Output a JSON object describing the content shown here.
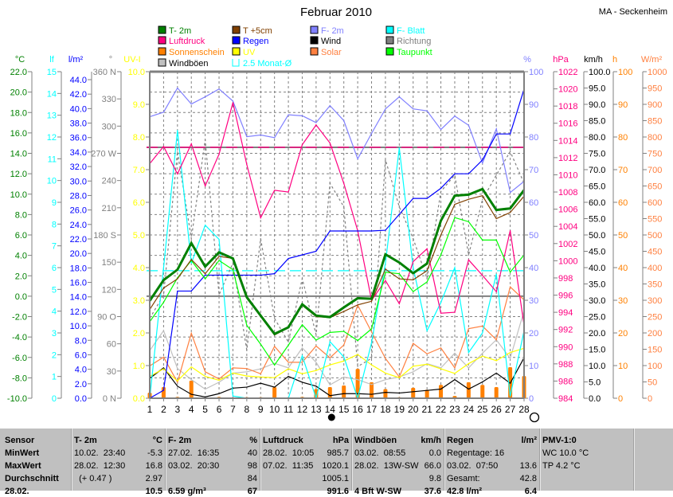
{
  "title": "Februar 2010",
  "station": "MA - Seckenheim",
  "legend": [
    {
      "label": "T- 2m",
      "color": "#008000"
    },
    {
      "label": "T +5cm",
      "color": "#804000"
    },
    {
      "label": "F- 2m",
      "color": "#8080ff"
    },
    {
      "label": "F- Blatt",
      "color": "#00ffff"
    },
    {
      "label": "Luftdruck",
      "color": "#ff0080"
    },
    {
      "label": "Regen",
      "color": "#0000ff"
    },
    {
      "label": "Wind",
      "color": "#000000"
    },
    {
      "label": "Richtung",
      "color": "#808080"
    },
    {
      "label": "Sonnenschein",
      "color": "#ff8000"
    },
    {
      "label": "UV",
      "color": "#ffff00"
    },
    {
      "label": "Solar",
      "color": "#ff8040"
    },
    {
      "label": "Taupunkt",
      "color": "#00ff00"
    },
    {
      "label": "Windböen",
      "color": "#c0c0c0"
    },
    {
      "label": "2.5 Monat-Ø",
      "color": "#00ffff"
    }
  ],
  "chart_data": {
    "type": "line",
    "title": "Februar 2010",
    "x": [
      1,
      2,
      3,
      4,
      5,
      6,
      7,
      8,
      9,
      10,
      11,
      12,
      13,
      14,
      15,
      16,
      17,
      18,
      19,
      20,
      21,
      22,
      23,
      24,
      25,
      26,
      27,
      28
    ],
    "grid": true,
    "axes": {
      "C": {
        "unit": "°C",
        "color": "#008000",
        "min": -10,
        "max": 22,
        "ticks": [
          22,
          20,
          18,
          16,
          14,
          12,
          10,
          8,
          6,
          4,
          2,
          0,
          -2,
          -4,
          -6,
          -8,
          -10
        ],
        "labels": [
          "22.0",
          "20.0",
          "18.0",
          "16.0",
          "14.0",
          "12.0",
          "10.0",
          "8.0",
          "6.0",
          "4.0",
          "2.0",
          "0.0",
          "-2.0",
          "-4.0",
          "-6.0",
          "-8.0",
          "-10.0"
        ]
      },
      "lf": {
        "unit": "lf",
        "color": "#00ffff",
        "min": 0,
        "max": 15,
        "ticks": [
          15,
          14,
          13,
          12,
          11,
          10,
          9,
          8,
          7,
          6,
          5,
          4,
          3,
          2,
          1,
          0
        ],
        "labels": [
          "15",
          "14",
          "13",
          "12",
          "11",
          "10",
          "9",
          "8",
          "7",
          "6",
          "5",
          "4",
          "3",
          "2",
          "1",
          "0"
        ]
      },
      "mm": {
        "unit": "l/m²",
        "color": "#0000ff",
        "min": 0,
        "max": 45.1,
        "ticks": [
          44,
          42,
          40,
          38,
          36,
          34,
          32,
          30,
          28,
          26,
          24,
          22,
          20,
          18,
          16,
          14,
          12,
          10,
          8,
          6,
          4,
          2,
          0
        ],
        "labels": [
          "44.0",
          "42.0",
          "40.0",
          "38.0",
          "36.0",
          "34.0",
          "32.0",
          "30.0",
          "28.0",
          "26.0",
          "24.0",
          "22.0",
          "20.0",
          "18.0",
          "16.0",
          "14.0",
          "12.0",
          "10.0",
          "8.0",
          "6.0",
          "4.0",
          "2.0",
          "0.0"
        ]
      },
      "deg": {
        "unit": "°",
        "color": "#808080",
        "min": 0,
        "max": 360,
        "ticks": [
          360,
          330,
          300,
          270,
          240,
          210,
          180,
          150,
          120,
          90,
          60,
          30,
          0
        ],
        "labels": [
          "360 N",
          "330",
          "300",
          "270 W",
          "240",
          "210",
          "180 S",
          "150",
          "120",
          "90  O",
          "60",
          "30",
          "0    N"
        ]
      },
      "uv": {
        "unit": "UV-I",
        "color": "#ffff00",
        "min": 0,
        "max": 10,
        "ticks": [
          10,
          9,
          8,
          7,
          6,
          5,
          4,
          3,
          2,
          1,
          0
        ],
        "labels": [
          "10.0",
          "9.0",
          "8.0",
          "7.0",
          "6.0",
          "5.0",
          "4.0",
          "3.0",
          "2.0",
          "1.0",
          "0.0"
        ]
      },
      "pct": {
        "unit": "%",
        "color": "#8080ff",
        "min": 0,
        "max": 100,
        "ticks": [
          100,
          90,
          80,
          70,
          60,
          50,
          40,
          30,
          20,
          10,
          0
        ],
        "labels": [
          "100",
          "90",
          "80",
          "70",
          "60",
          "50",
          "40",
          "30",
          "20",
          "10",
          "0"
        ]
      },
      "hpa": {
        "unit": "hPa",
        "color": "#ff0080",
        "min": 984,
        "max": 1022,
        "ticks": [
          1022,
          1020,
          1018,
          1016,
          1014,
          1012,
          1010,
          1008,
          1006,
          1004,
          1002,
          1000,
          998,
          996,
          994,
          992,
          990,
          988,
          986,
          984
        ],
        "labels": [
          "1022",
          "1020",
          "1018",
          "1016",
          "1014",
          "1012",
          "1010",
          "1008",
          "1006",
          "1004",
          "1002",
          "1000",
          "998",
          "996",
          "994",
          "992",
          "990",
          "988",
          "986",
          "984"
        ]
      },
      "kmh": {
        "unit": "km/h",
        "color": "#000000",
        "min": 0,
        "max": 100,
        "ticks": [
          100,
          95,
          90,
          85,
          80,
          75,
          70,
          65,
          60,
          55,
          50,
          45,
          40,
          35,
          30,
          25,
          20,
          15,
          10,
          5,
          0
        ],
        "labels": [
          "100.0",
          "95.0",
          "90.0",
          "85.0",
          "80.0",
          "75.0",
          "70.0",
          "65.0",
          "60.0",
          "55.0",
          "50.0",
          "45.0",
          "40.0",
          "35.0",
          "30.0",
          "25.0",
          "20.0",
          "15.0",
          "10.0",
          "5.0",
          "0.0"
        ]
      },
      "h": {
        "unit": "h",
        "color": "#ff8000",
        "min": 0,
        "max": 100,
        "ticks": [
          100,
          90,
          80,
          70,
          60,
          50,
          40,
          30,
          20,
          10,
          0
        ],
        "labels": [
          "100",
          "90",
          "80",
          "70",
          "60",
          "50",
          "40",
          "30",
          "20",
          "10",
          "0"
        ]
      },
      "wm": {
        "unit": "W/m²",
        "color": "#ff8040",
        "min": 0,
        "max": 1000,
        "ticks": [
          1000,
          950,
          900,
          850,
          800,
          750,
          700,
          650,
          600,
          550,
          500,
          450,
          400,
          350,
          300,
          250,
          200,
          150,
          100,
          50,
          0
        ],
        "labels": [
          "1000",
          "950",
          "900",
          "850",
          "800",
          "750",
          "700",
          "650",
          "600",
          "550",
          "500",
          "450",
          "400",
          "350",
          "300",
          "250",
          "200",
          "150",
          "100",
          "50",
          "0"
        ]
      }
    },
    "reference_lines": [
      {
        "axis": "hpa",
        "value": 1013.2,
        "color": "#808080",
        "style": "solid"
      },
      {
        "axis": "C",
        "value": 0,
        "color": "#808080",
        "style": "solid"
      },
      {
        "axis": "hpa",
        "value": 1013.2,
        "color": "#ff0080",
        "style": "dashed"
      },
      {
        "axis": "C",
        "value": 2.5,
        "color": "#00ffff",
        "style": "dashed"
      }
    ],
    "series": [
      {
        "name": "Sonnenschein",
        "axis": "h",
        "type": "bar",
        "color": "#ff8000",
        "values": [
          1.7,
          3.4,
          0.4,
          5.4,
          0,
          0.4,
          0.2,
          0.3,
          0.3,
          3.4,
          0.2,
          0.4,
          2.8,
          3.4,
          3.9,
          9.0,
          4.9,
          2.8,
          0.3,
          3.2,
          2.6,
          4.1,
          0.7,
          4.9,
          4.1,
          3.4,
          9.5,
          6.8
        ]
      },
      {
        "name": "Richtung",
        "axis": "deg",
        "type": "line",
        "color": "#808080",
        "dashed": true,
        "values": [
          88,
          114,
          272,
          176,
          285,
          114,
          149,
          53,
          176,
          88,
          62,
          132,
          70,
          237,
          211,
          35,
          44,
          263,
          211,
          176,
          132,
          228,
          246,
          158,
          219,
          246,
          272,
          237
        ]
      },
      {
        "name": "Windböen",
        "axis": "kmh",
        "type": "line",
        "color": "#c0c0c0",
        "values": [
          14.6,
          20.7,
          9.1,
          5.7,
          2.8,
          4.9,
          7.7,
          8.1,
          9.0,
          10.7,
          9.3,
          15.4,
          11.0,
          4.1,
          6.5,
          5.7,
          4.2,
          5.7,
          6.5,
          8.1,
          10.6,
          9.3,
          13.8,
          9.3,
          13.8,
          17.9,
          12.2,
          26.8
        ]
      },
      {
        "name": "Wind",
        "axis": "kmh",
        "type": "line",
        "color": "#000000",
        "values": [
          6.1,
          9.3,
          3.7,
          1.2,
          0.4,
          1.4,
          3.1,
          3.4,
          4.6,
          3.4,
          6.7,
          4.9,
          3.7,
          0.8,
          1.4,
          1.4,
          1.2,
          1.8,
          1.6,
          2.0,
          2.4,
          2.8,
          5.7,
          2.8,
          5.0,
          7.7,
          4.6,
          12.4
        ]
      },
      {
        "name": "Solar",
        "axis": "wm",
        "type": "line",
        "color": "#ff8040",
        "values": [
          99,
          126,
          49,
          199,
          81,
          59,
          93,
          91,
          75,
          159,
          110,
          110,
          160,
          124,
          163,
          285,
          203,
          122,
          65,
          168,
          136,
          154,
          93,
          213,
          221,
          179,
          341,
          301
        ]
      },
      {
        "name": "UV",
        "axis": "uv",
        "type": "line",
        "color": "#ffff00",
        "values": [
          0.67,
          0.9,
          0.53,
          0.96,
          0.67,
          0.55,
          0.77,
          0.68,
          0.65,
          0.63,
          0.9,
          0.75,
          0.85,
          1.02,
          1.14,
          1.34,
          1.02,
          0.77,
          0.63,
          0.98,
          1.04,
          0.9,
          0.76,
          1.06,
          1.29,
          1.15,
          1.4,
          1.53
        ]
      },
      {
        "name": "F- Blatt",
        "axis": "lf",
        "type": "line",
        "color": "#00ffff",
        "values": [
          0,
          6.0,
          12.3,
          6.2,
          7.95,
          7.3,
          0.1,
          0,
          0,
          0,
          0,
          1.95,
          0,
          2.6,
          1.9,
          0,
          2.55,
          6.2,
          11.5,
          6.0,
          3.1,
          4.4,
          6.0,
          2.1,
          3.0,
          5.7,
          0.1,
          3.1
        ]
      },
      {
        "name": "F- 2m",
        "axis": "pct",
        "type": "line",
        "color": "#8080ff",
        "values": [
          86.2,
          87.6,
          95.0,
          90.1,
          92.3,
          94.7,
          91.0,
          80.1,
          80.6,
          79.8,
          86.8,
          86.5,
          84.4,
          89.6,
          85.0,
          73.3,
          81.1,
          88.6,
          92.3,
          88.6,
          88.0,
          82.3,
          86.4,
          83.6,
          72.0,
          82.5,
          63.0,
          66.4
        ]
      },
      {
        "name": "Luftdruck",
        "axis": "hpa",
        "type": "line",
        "color": "#ff0080",
        "values": [
          1011.3,
          1013.3,
          1010.1,
          1013.6,
          1008.7,
          1012.4,
          1018.4,
          1011.2,
          1005.0,
          1008.2,
          1008.0,
          1013.5,
          1015.8,
          1013.7,
          1009.0,
          1003.5,
          995.4,
          997.7,
          995.0,
          999.9,
          1001.4,
          993.9,
          994.0,
          1000.1,
          998.3,
          996.4,
          1003.5,
          992.5
        ]
      },
      {
        "name": "Regen",
        "axis": "mm",
        "type": "line",
        "color": "#0000ff",
        "values": [
          0,
          1.1,
          14.8,
          14.8,
          17.0,
          17.0,
          17.0,
          17.0,
          17.0,
          17.2,
          19.3,
          19.8,
          20.3,
          23.1,
          23.1,
          23.1,
          23.1,
          23.2,
          25.4,
          27.6,
          27.6,
          29.0,
          31.0,
          31.0,
          32.9,
          36.5,
          36.5,
          42.7
        ]
      },
      {
        "name": "Taupunkt",
        "axis": "C",
        "type": "line",
        "color": "#00ff00",
        "values": [
          -2.5,
          -0.6,
          1.8,
          3.5,
          1.7,
          3.5,
          2.6,
          -2.85,
          -4.7,
          -6.75,
          -4.8,
          -2.8,
          -4.3,
          -3.55,
          -3.45,
          -4.35,
          -3.2,
          2.35,
          2.2,
          0.45,
          1.4,
          4.05,
          7.7,
          7.3,
          5.5,
          5.5,
          2.35,
          4.05
        ]
      },
      {
        "name": "T +5cm",
        "axis": "C",
        "type": "line",
        "color": "#804000",
        "values": [
          -1.3,
          0.8,
          1.7,
          3.6,
          2.2,
          3.9,
          3.7,
          -0.2,
          -2.0,
          -3.8,
          -3.1,
          -0.9,
          -2.0,
          -2.1,
          -1.5,
          -0.85,
          -0.5,
          2.65,
          1.7,
          1.6,
          2.5,
          6.0,
          9.0,
          9.5,
          9.85,
          7.6,
          8.2,
          9.8
        ]
      },
      {
        "name": "T- 2m",
        "axis": "C",
        "type": "line",
        "color": "#008000",
        "thick": true,
        "values": [
          -0.45,
          1.58,
          2.6,
          5.2,
          2.9,
          4.3,
          3.7,
          -0.1,
          -1.9,
          -3.7,
          -3.05,
          -0.8,
          -1.9,
          -2.05,
          -1.1,
          -0.2,
          -0.25,
          4.1,
          3.3,
          2.25,
          3.2,
          7.4,
          9.85,
          9.95,
          10.5,
          8.45,
          8.6,
          10.4
        ]
      }
    ],
    "moon_phases": [
      {
        "day": 14,
        "phase": "new-moon"
      },
      {
        "day": 28,
        "phase": "full-moon"
      }
    ]
  },
  "table": {
    "sensor": {
      "header": "Sensor",
      "rows": [
        "MinWert",
        "MaxWert",
        "Durchschnitt",
        "28.02."
      ]
    },
    "groups": [
      {
        "name": "T- 2m",
        "unit": "°C",
        "rows": [
          [
            "10.02.  23:40",
            "-5.3"
          ],
          [
            "28.02.  12:30",
            "16.8"
          ],
          [
            "  (+ 0.47 )",
            "2.97"
          ],
          [
            "",
            "10.5"
          ]
        ]
      },
      {
        "name": "F- 2m",
        "unit": "%",
        "rows": [
          [
            "27.02.  16:35",
            "40"
          ],
          [
            "03.02.  20:30",
            "98"
          ],
          [
            "",
            "84"
          ],
          [
            "6.59 g/m³",
            "67"
          ]
        ]
      },
      {
        "name": "Luftdruck",
        "unit": "hPa",
        "rows": [
          [
            "28.02.  10:05",
            "985.7"
          ],
          [
            "07.02.  11:35",
            "1020.1"
          ],
          [
            "",
            "1005.1"
          ],
          [
            "",
            "991.6"
          ]
        ]
      },
      {
        "name": "Windböen",
        "unit": "km/h",
        "rows": [
          [
            "03.02.  08:55",
            "0.0"
          ],
          [
            "28.02.  13W-SW",
            "66.0"
          ],
          [
            "",
            "9.8"
          ],
          [
            "4 Bft W-SW",
            "37.6"
          ]
        ]
      },
      {
        "name": "Regen",
        "unit": "l/m²",
        "rows": [
          [
            "Regentage: 16",
            ""
          ],
          [
            "03.02.  07:50",
            "13.6"
          ],
          [
            "Gesamt:",
            "42.8"
          ],
          [
            "42.8 l/m²",
            "6.4"
          ]
        ]
      },
      {
        "name": "PMV-1:0",
        "unit": "",
        "rows": [
          [
            "WC 10.0 °C",
            ""
          ],
          [
            "TP 4.2 °C",
            ""
          ],
          [
            "",
            ""
          ],
          [
            "",
            ""
          ]
        ]
      }
    ]
  }
}
